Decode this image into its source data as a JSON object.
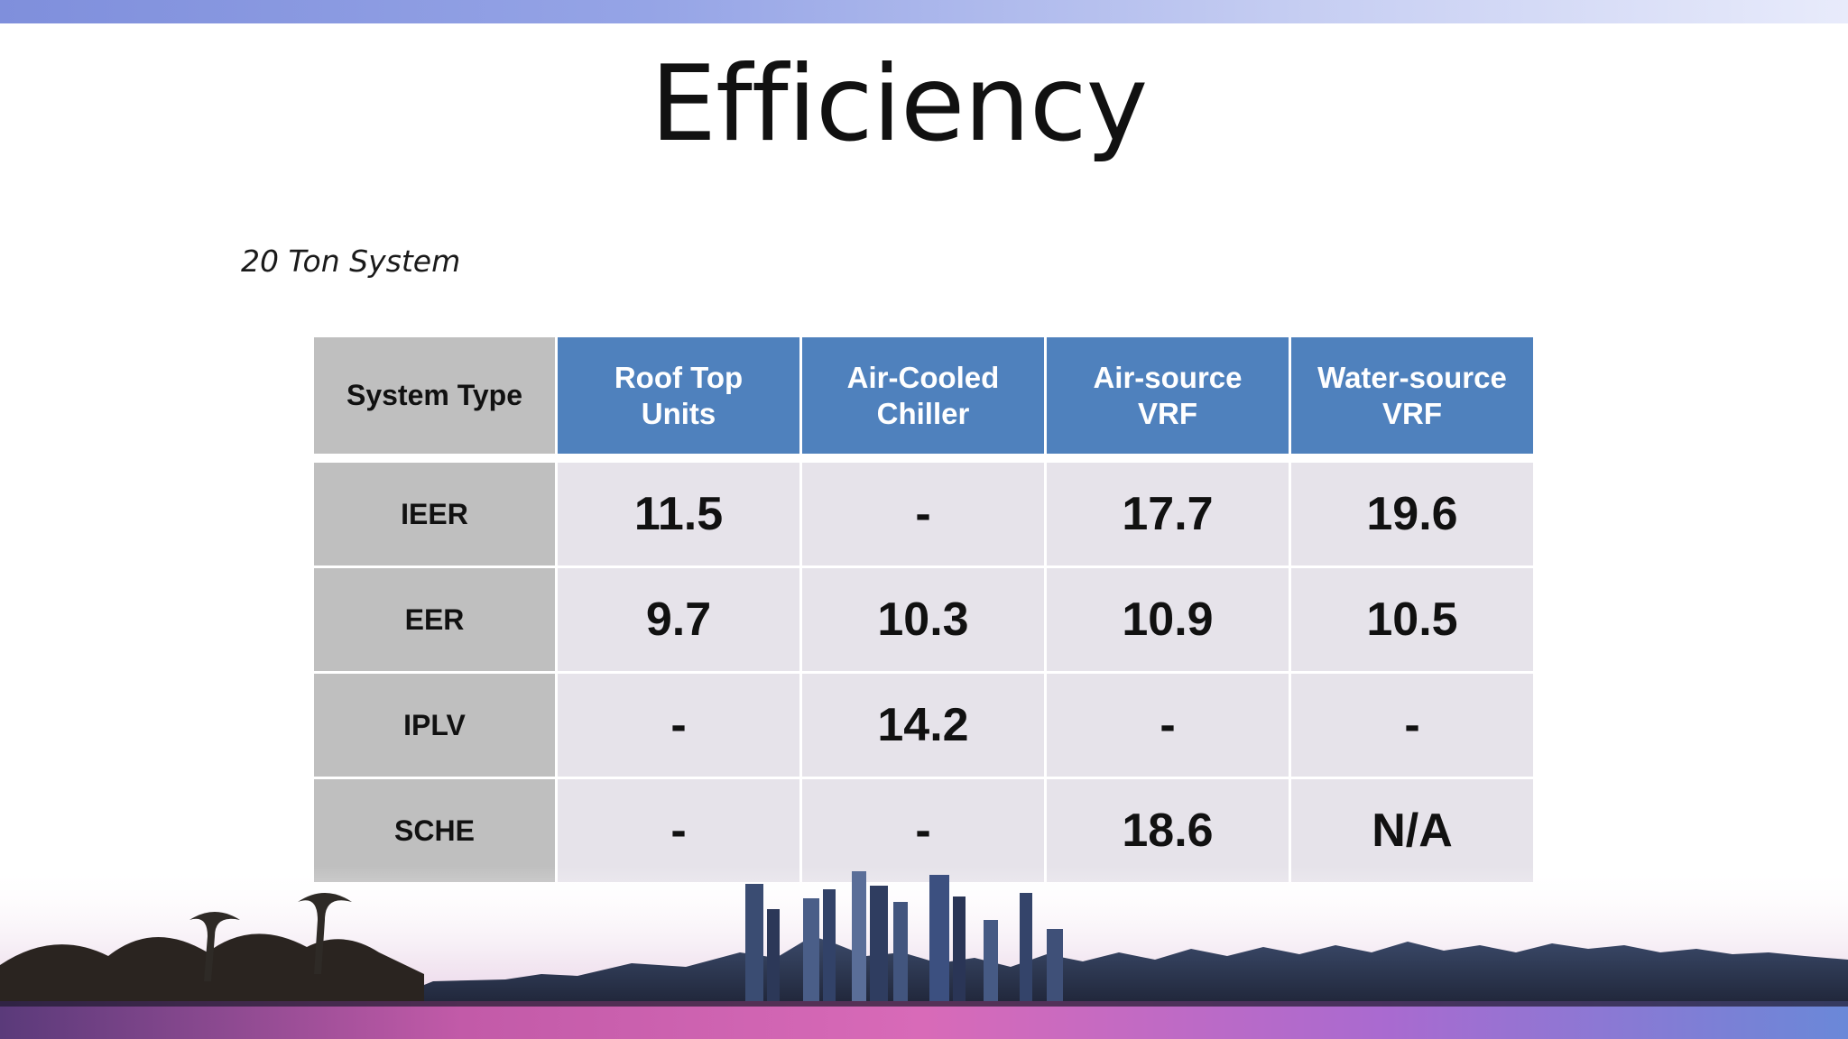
{
  "slide": {
    "title": "Efficiency",
    "subtitle": "20 Ton System"
  },
  "table": {
    "corner_label": "System Type",
    "columns": [
      {
        "line1": "Roof Top",
        "line2": "Units"
      },
      {
        "line1": "Air-Cooled",
        "line2": "Chiller"
      },
      {
        "line1": "Air-source",
        "line2": "VRF"
      },
      {
        "line1": "Water-source",
        "line2": "VRF"
      }
    ],
    "rows": [
      {
        "label": "IEER",
        "values": [
          "11.5",
          "-",
          "17.7",
          "19.6"
        ]
      },
      {
        "label": "EER",
        "values": [
          "9.7",
          "10.3",
          "10.9",
          "10.5"
        ]
      },
      {
        "label": "IPLV",
        "values": [
          "-",
          "14.2",
          "-",
          "-"
        ]
      },
      {
        "label": "SCHE",
        "values": [
          "-",
          "-",
          "18.6",
          "N/A"
        ]
      }
    ]
  },
  "colors": {
    "header_blue": "#4f81bd",
    "row_header_gray": "#bfbfbf",
    "cell_fill": "#e6e3ea"
  }
}
